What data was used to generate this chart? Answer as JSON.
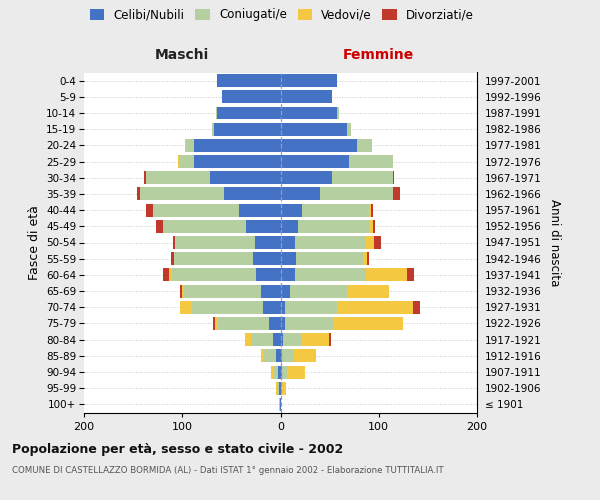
{
  "age_groups": [
    "100+",
    "95-99",
    "90-94",
    "85-89",
    "80-84",
    "75-79",
    "70-74",
    "65-69",
    "60-64",
    "55-59",
    "50-54",
    "45-49",
    "40-44",
    "35-39",
    "30-34",
    "25-29",
    "20-24",
    "15-19",
    "10-14",
    "5-9",
    "0-4"
  ],
  "birth_years": [
    "≤ 1901",
    "1902-1906",
    "1907-1911",
    "1912-1916",
    "1917-1921",
    "1922-1926",
    "1927-1931",
    "1932-1936",
    "1937-1941",
    "1942-1946",
    "1947-1951",
    "1952-1956",
    "1957-1961",
    "1962-1966",
    "1967-1971",
    "1972-1976",
    "1977-1981",
    "1982-1986",
    "1987-1991",
    "1992-1996",
    "1997-2001"
  ],
  "male_celibi": [
    1,
    2,
    3,
    5,
    8,
    12,
    18,
    20,
    25,
    28,
    26,
    35,
    42,
    58,
    72,
    88,
    88,
    68,
    65,
    60,
    65
  ],
  "male_coniugati": [
    1,
    2,
    5,
    12,
    22,
    52,
    72,
    78,
    85,
    80,
    80,
    85,
    88,
    85,
    65,
    15,
    8,
    2,
    1,
    0,
    0
  ],
  "male_vedovi": [
    0,
    1,
    2,
    3,
    6,
    3,
    12,
    2,
    3,
    0,
    1,
    0,
    0,
    0,
    0,
    1,
    1,
    0,
    0,
    0,
    0
  ],
  "male_divorziati": [
    0,
    0,
    0,
    0,
    0,
    2,
    0,
    2,
    7,
    3,
    2,
    7,
    7,
    3,
    2,
    0,
    0,
    0,
    0,
    0,
    0
  ],
  "female_celibi": [
    0,
    1,
    2,
    2,
    3,
    5,
    5,
    10,
    15,
    16,
    15,
    18,
    22,
    40,
    52,
    70,
    78,
    68,
    58,
    52,
    58
  ],
  "female_coniugati": [
    0,
    1,
    5,
    12,
    18,
    48,
    52,
    58,
    72,
    68,
    72,
    72,
    68,
    75,
    62,
    45,
    15,
    4,
    2,
    0,
    0
  ],
  "female_vedovi": [
    1,
    4,
    18,
    22,
    28,
    72,
    78,
    42,
    42,
    4,
    8,
    4,
    2,
    0,
    0,
    0,
    0,
    0,
    0,
    0,
    0
  ],
  "female_divorziati": [
    0,
    0,
    0,
    0,
    2,
    0,
    7,
    0,
    7,
    2,
    7,
    2,
    2,
    7,
    2,
    0,
    0,
    0,
    0,
    0,
    0
  ],
  "color_celibi": "#4472c4",
  "color_coniugati": "#b5cfa0",
  "color_vedovi": "#f5c842",
  "color_divorziati": "#c0392b",
  "title": "Popolazione per età, sesso e stato civile - 2002",
  "subtitle": "COMUNE DI CASTELLAZZO BORMIDA (AL) - Dati ISTAT 1° gennaio 2002 - Elaborazione TUTTITALIA.IT",
  "xlabel_left": "Maschi",
  "xlabel_right": "Femmine",
  "ylabel_left": "Fasce di età",
  "ylabel_right": "Anni di nascita",
  "xlim": 200,
  "bg_color": "#ebebeb",
  "plot_bg": "#ffffff"
}
